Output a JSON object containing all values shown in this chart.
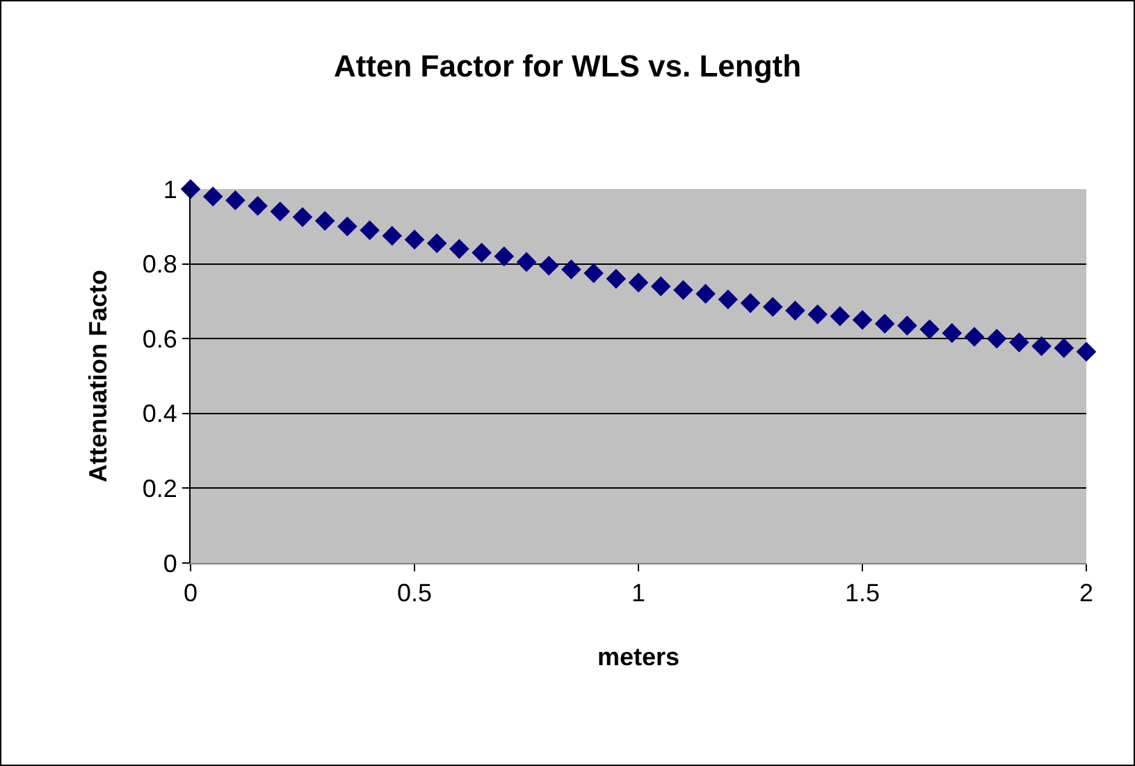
{
  "chart_data": {
    "type": "scatter",
    "title": "Atten Factor for WLS vs. Length",
    "xlabel": "meters",
    "ylabel": "Attenuation Facto",
    "x": [
      0,
      0.05,
      0.1,
      0.15,
      0.2,
      0.25,
      0.3,
      0.35,
      0.4,
      0.45,
      0.5,
      0.55,
      0.6,
      0.65,
      0.7,
      0.75,
      0.8,
      0.85,
      0.9,
      0.95,
      1,
      1.05,
      1.1,
      1.15,
      1.2,
      1.25,
      1.3,
      1.35,
      1.4,
      1.45,
      1.5,
      1.55,
      1.6,
      1.65,
      1.7,
      1.75,
      1.8,
      1.85,
      1.9,
      1.95,
      2
    ],
    "series": [
      {
        "color": "#000080",
        "values": [
          1,
          0.98,
          0.97,
          0.955,
          0.94,
          0.925,
          0.915,
          0.9,
          0.89,
          0.875,
          0.865,
          0.855,
          0.84,
          0.83,
          0.82,
          0.805,
          0.795,
          0.785,
          0.775,
          0.76,
          0.75,
          0.74,
          0.73,
          0.72,
          0.705,
          0.695,
          0.685,
          0.675,
          0.665,
          0.66,
          0.65,
          0.64,
          0.635,
          0.625,
          0.615,
          0.605,
          0.6,
          0.59,
          0.58,
          0.575,
          0.565
        ]
      }
    ],
    "xlim": [
      0,
      2
    ],
    "xticks": [
      0,
      0.5,
      1,
      1.5,
      2
    ],
    "ylim": [
      0,
      1
    ],
    "yticks": [
      0,
      0.2,
      0.4,
      0.6,
      0.8,
      1
    ],
    "grid": "y",
    "legend": false,
    "marker": "diamond"
  }
}
